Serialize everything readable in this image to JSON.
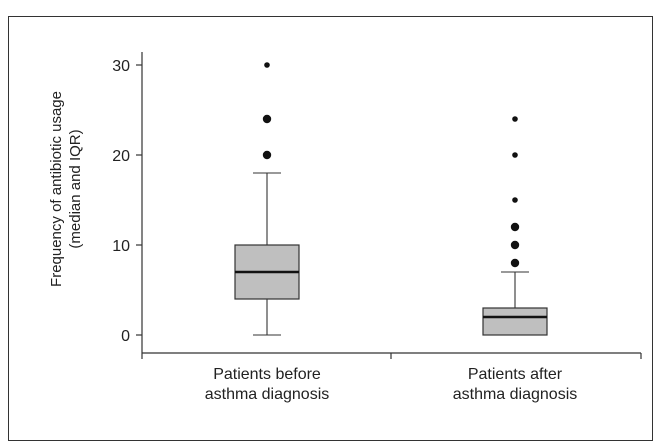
{
  "chart_data": {
    "type": "box",
    "ylabel_lines": [
      "Frequency of antibiotic usage",
      "(median and IQR)"
    ],
    "ylim": [
      0,
      30
    ],
    "yticks": [
      0,
      10,
      20,
      30
    ],
    "grid": false,
    "box_fill": "#bfbfbf",
    "categories": [
      {
        "label_lines": [
          "Patients before",
          "asthma diagnosis"
        ],
        "whisker_low": 0,
        "q1": 4,
        "median": 7,
        "q3": 10,
        "whisker_high": 18,
        "outliers": [
          {
            "y": 20,
            "size": "large"
          },
          {
            "y": 24,
            "size": "large"
          },
          {
            "y": 30,
            "size": "small"
          }
        ]
      },
      {
        "label_lines": [
          "Patients after",
          "asthma diagnosis"
        ],
        "whisker_low": 0,
        "q1": 0,
        "median": 2,
        "q3": 3,
        "whisker_high": 7,
        "outliers": [
          {
            "y": 8,
            "size": "large"
          },
          {
            "y": 10,
            "size": "large"
          },
          {
            "y": 12,
            "size": "large"
          },
          {
            "y": 15,
            "size": "small"
          },
          {
            "y": 20,
            "size": "small"
          },
          {
            "y": 24,
            "size": "small"
          }
        ]
      }
    ]
  }
}
